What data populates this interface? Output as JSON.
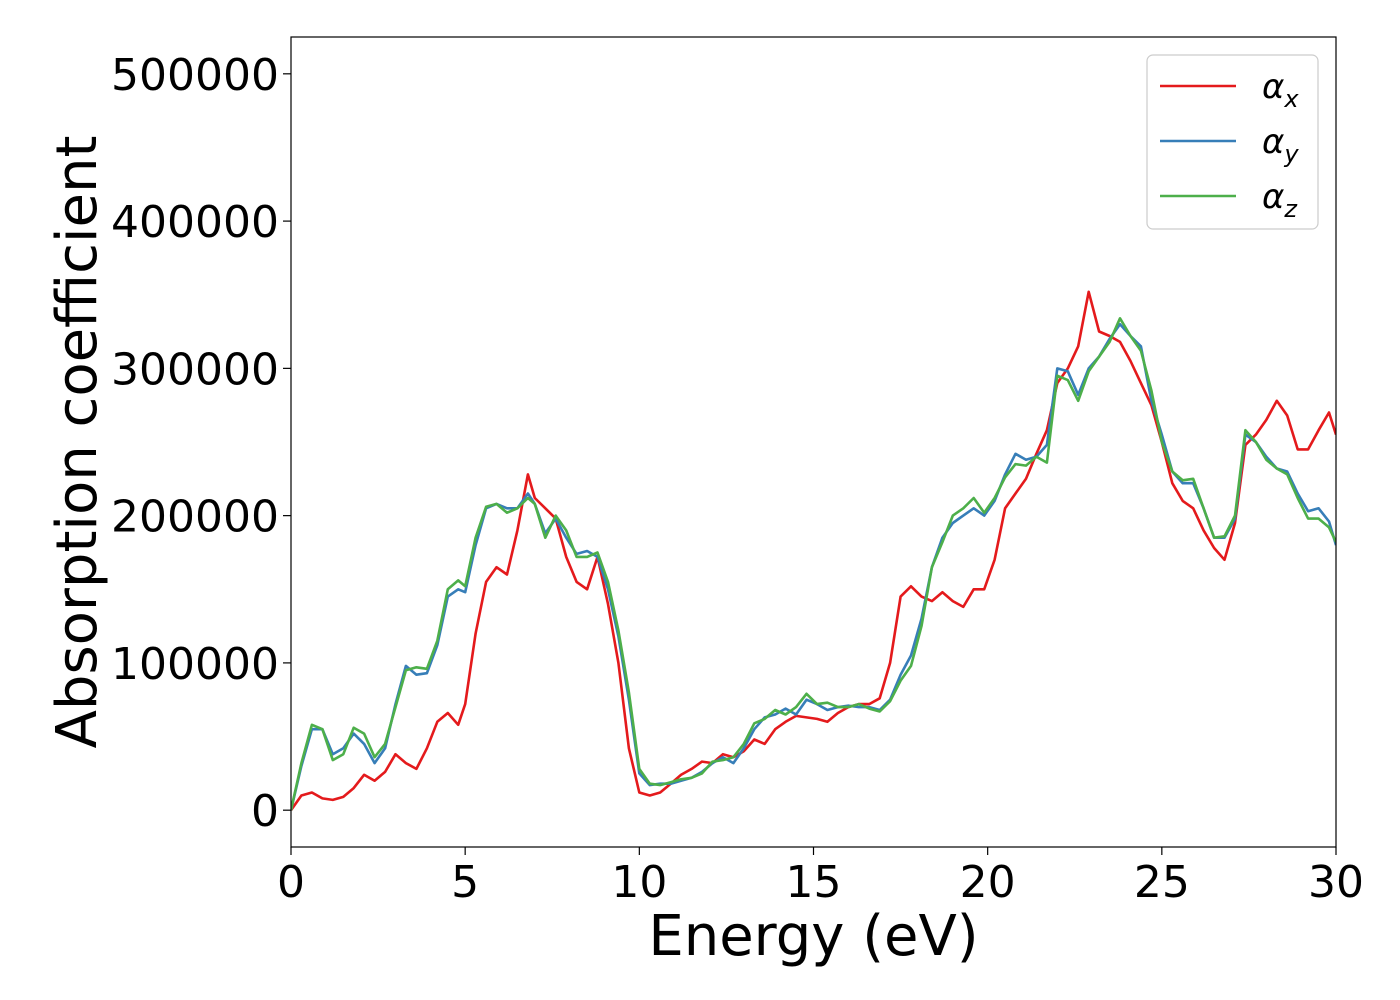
{
  "chart_data": {
    "type": "line",
    "title": "",
    "xlabel": "Energy (eV)",
    "ylabel": "Absorption coefficient",
    "xlim": [
      0,
      30
    ],
    "ylim": [
      -25000,
      525000
    ],
    "xticks": [
      0,
      5,
      10,
      15,
      20,
      25,
      30
    ],
    "yticks": [
      0,
      100000,
      200000,
      300000,
      400000,
      500000
    ],
    "xtick_labels": [
      "0",
      "5",
      "10",
      "15",
      "20",
      "25",
      "30"
    ],
    "ytick_labels": [
      "0",
      "100000",
      "200000",
      "300000",
      "400000",
      "500000"
    ],
    "grid": false,
    "legend_position": "top-right",
    "series": [
      {
        "name": "α",
        "subscript": "x",
        "color": "#e41a1c",
        "x": [
          0,
          0.3,
          0.6,
          0.9,
          1.2,
          1.5,
          1.8,
          2.1,
          2.4,
          2.7,
          3.0,
          3.3,
          3.6,
          3.9,
          4.2,
          4.5,
          4.8,
          5.0,
          5.3,
          5.6,
          5.9,
          6.2,
          6.5,
          6.8,
          7.0,
          7.3,
          7.6,
          7.9,
          8.2,
          8.5,
          8.8,
          9.1,
          9.4,
          9.7,
          10.0,
          10.3,
          10.6,
          10.9,
          11.2,
          11.5,
          11.8,
          12.1,
          12.4,
          12.7,
          13.0,
          13.3,
          13.6,
          13.9,
          14.2,
          14.5,
          14.8,
          15.1,
          15.4,
          15.7,
          16.0,
          16.3,
          16.6,
          16.9,
          17.2,
          17.5,
          17.8,
          18.1,
          18.4,
          18.7,
          19.0,
          19.3,
          19.6,
          19.9,
          20.2,
          20.5,
          20.8,
          21.1,
          21.4,
          21.7,
          22.0,
          22.3,
          22.6,
          22.9,
          23.2,
          23.5,
          23.8,
          24.1,
          24.4,
          24.7,
          25.0,
          25.3,
          25.6,
          25.9,
          26.2,
          26.5,
          26.8,
          27.1,
          27.4,
          27.7,
          28.0,
          28.3,
          28.6,
          28.9,
          29.2,
          29.5,
          29.8,
          30.0
        ],
        "y": [
          0,
          10000,
          12000,
          8000,
          7000,
          9000,
          15000,
          24000,
          20000,
          26000,
          38000,
          32000,
          28000,
          42000,
          60000,
          66000,
          58000,
          72000,
          120000,
          155000,
          165000,
          160000,
          190000,
          228000,
          212000,
          205000,
          198000,
          172000,
          155000,
          150000,
          172000,
          140000,
          100000,
          42000,
          12000,
          10000,
          12000,
          18000,
          24000,
          28000,
          33000,
          32000,
          38000,
          36000,
          40000,
          48000,
          45000,
          55000,
          60000,
          64000,
          63000,
          62000,
          60000,
          66000,
          70000,
          72000,
          72000,
          76000,
          100000,
          145000,
          152000,
          145000,
          142000,
          148000,
          142000,
          138000,
          150000,
          150000,
          170000,
          205000,
          215000,
          225000,
          242000,
          258000,
          290000,
          300000,
          315000,
          352000,
          325000,
          322000,
          318000,
          305000,
          290000,
          275000,
          250000,
          222000,
          210000,
          205000,
          190000,
          178000,
          170000,
          195000,
          248000,
          255000,
          265000,
          278000,
          268000,
          245000,
          245000,
          258000,
          270000,
          255000
        ]
      },
      {
        "name": "α",
        "subscript": "y",
        "color": "#377eb8",
        "x": [
          0,
          0.3,
          0.6,
          0.9,
          1.2,
          1.5,
          1.8,
          2.1,
          2.4,
          2.7,
          3.0,
          3.3,
          3.6,
          3.9,
          4.2,
          4.5,
          4.8,
          5.0,
          5.3,
          5.6,
          5.9,
          6.2,
          6.5,
          6.8,
          7.0,
          7.3,
          7.6,
          7.9,
          8.2,
          8.5,
          8.8,
          9.1,
          9.4,
          9.7,
          10.0,
          10.3,
          10.6,
          10.9,
          11.2,
          11.5,
          11.8,
          12.1,
          12.4,
          12.7,
          13.0,
          13.3,
          13.6,
          13.9,
          14.2,
          14.5,
          14.8,
          15.1,
          15.4,
          15.7,
          16.0,
          16.3,
          16.6,
          16.9,
          17.2,
          17.5,
          17.8,
          18.1,
          18.4,
          18.7,
          19.0,
          19.3,
          19.6,
          19.9,
          20.2,
          20.5,
          20.8,
          21.1,
          21.4,
          21.7,
          22.0,
          22.3,
          22.6,
          22.9,
          23.2,
          23.5,
          23.8,
          24.1,
          24.4,
          24.7,
          25.0,
          25.3,
          25.6,
          25.9,
          26.2,
          26.5,
          26.8,
          27.1,
          27.4,
          27.7,
          28.0,
          28.3,
          28.6,
          28.9,
          29.2,
          29.5,
          29.8,
          30.0
        ],
        "y": [
          0,
          30000,
          55000,
          55000,
          38000,
          42000,
          52000,
          45000,
          32000,
          42000,
          72000,
          98000,
          92000,
          93000,
          112000,
          145000,
          150000,
          148000,
          180000,
          205000,
          208000,
          205000,
          205000,
          215000,
          208000,
          188000,
          198000,
          185000,
          174000,
          176000,
          172000,
          150000,
          118000,
          75000,
          25000,
          17000,
          18000,
          18000,
          20000,
          22000,
          26000,
          32000,
          36000,
          32000,
          42000,
          55000,
          63000,
          65000,
          69000,
          65000,
          75000,
          72000,
          68000,
          70000,
          71000,
          70000,
          70000,
          68000,
          75000,
          92000,
          105000,
          130000,
          165000,
          185000,
          195000,
          200000,
          205000,
          200000,
          210000,
          228000,
          242000,
          238000,
          240000,
          248000,
          300000,
          298000,
          282000,
          300000,
          308000,
          320000,
          330000,
          322000,
          315000,
          278000,
          255000,
          230000,
          222000,
          222000,
          205000,
          185000,
          185000,
          198000,
          255000,
          250000,
          240000,
          232000,
          230000,
          215000,
          203000,
          205000,
          196000,
          180000
        ]
      },
      {
        "name": "α",
        "subscript": "z",
        "color": "#4daf4a",
        "x": [
          0,
          0.3,
          0.6,
          0.9,
          1.2,
          1.5,
          1.8,
          2.1,
          2.4,
          2.7,
          3.0,
          3.3,
          3.6,
          3.9,
          4.2,
          4.5,
          4.8,
          5.0,
          5.3,
          5.6,
          5.9,
          6.2,
          6.5,
          6.8,
          7.0,
          7.3,
          7.6,
          7.9,
          8.2,
          8.5,
          8.8,
          9.1,
          9.4,
          9.7,
          10.0,
          10.3,
          10.6,
          10.9,
          11.2,
          11.5,
          11.8,
          12.1,
          12.4,
          12.7,
          13.0,
          13.3,
          13.6,
          13.9,
          14.2,
          14.5,
          14.8,
          15.1,
          15.4,
          15.7,
          16.0,
          16.3,
          16.6,
          16.9,
          17.2,
          17.5,
          17.8,
          18.1,
          18.4,
          18.7,
          19.0,
          19.3,
          19.6,
          19.9,
          20.2,
          20.5,
          20.8,
          21.1,
          21.4,
          21.7,
          22.0,
          22.3,
          22.6,
          22.9,
          23.2,
          23.5,
          23.8,
          24.1,
          24.4,
          24.7,
          25.0,
          25.3,
          25.6,
          25.9,
          26.2,
          26.5,
          26.8,
          27.1,
          27.4,
          27.7,
          28.0,
          28.3,
          28.6,
          28.9,
          29.2,
          29.5,
          29.8,
          30.0
        ],
        "y": [
          0,
          32000,
          58000,
          55000,
          34000,
          38000,
          56000,
          52000,
          36000,
          45000,
          70000,
          95000,
          97000,
          96000,
          115000,
          150000,
          156000,
          152000,
          185000,
          206000,
          208000,
          202000,
          205000,
          212000,
          208000,
          185000,
          200000,
          190000,
          172000,
          172000,
          175000,
          155000,
          122000,
          80000,
          28000,
          18000,
          17000,
          19000,
          21000,
          22000,
          25000,
          33000,
          34000,
          36000,
          45000,
          59000,
          62000,
          68000,
          65000,
          70000,
          79000,
          72000,
          73000,
          70000,
          70000,
          72000,
          69000,
          67000,
          74000,
          88000,
          98000,
          125000,
          165000,
          182000,
          200000,
          205000,
          212000,
          202000,
          212000,
          226000,
          235000,
          234000,
          240000,
          236000,
          295000,
          292000,
          278000,
          298000,
          308000,
          318000,
          334000,
          322000,
          312000,
          285000,
          250000,
          230000,
          224000,
          225000,
          205000,
          185000,
          186000,
          200000,
          258000,
          250000,
          238000,
          232000,
          228000,
          212000,
          198000,
          198000,
          192000,
          182000
        ]
      }
    ]
  }
}
